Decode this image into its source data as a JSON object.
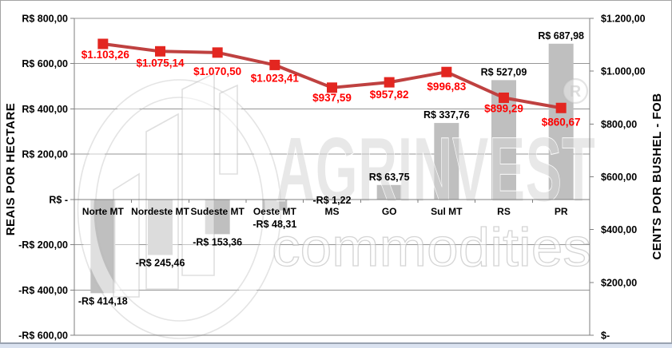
{
  "watermark": {
    "brand": "AGRINVEST",
    "sub": "commodities",
    "registered": "R"
  },
  "chart_data": {
    "type": "bar-line-combo",
    "grid": true,
    "legend": null,
    "categories": [
      "Norte MT",
      "Nordeste MT",
      "Sudeste MT",
      "Oeste MT",
      "MS",
      "GO",
      "Sul MT",
      "RS",
      "PR"
    ],
    "bar_series": {
      "type": "bar",
      "axis": "left",
      "color": "#bfbfbf",
      "values": [
        -414.18,
        -245.46,
        -153.36,
        -48.31,
        -1.22,
        63.75,
        337.76,
        527.09,
        687.98
      ],
      "labels": [
        "-R$ 414,18",
        "-R$ 245,46",
        "-R$ 153,36",
        "-R$ 48,31",
        "-R$ 1,22",
        "R$ 63,75",
        "R$ 337,76",
        "R$ 527,09",
        "R$ 687,98"
      ]
    },
    "line_series": {
      "type": "line",
      "axis": "right",
      "color": "#bf4140",
      "marker_color": "#e32620",
      "label_color": "#ff0000",
      "values": [
        1103.26,
        1075.14,
        1070.5,
        1023.41,
        937.59,
        957.82,
        996.83,
        899.29,
        860.67
      ],
      "labels": [
        "$1.103,26",
        "$1.075,14",
        "$1.070,50",
        "$1.023,41",
        "$937,59",
        "$957,82",
        "$996,83",
        "$899,29",
        "$860,67"
      ]
    },
    "left_axis": {
      "title": "REAIS POR HECTARE",
      "min": -600,
      "max": 800,
      "step": 200,
      "tick_labels": [
        "R$ 800,00",
        "R$ 600,00",
        "R$ 400,00",
        "R$ 200,00",
        "R$ -",
        "-R$ 200,00",
        "-R$ 400,00",
        "-R$ 600,00"
      ]
    },
    "right_axis": {
      "title": "CENTS POR BUSHEL - FOB",
      "min": 0,
      "max": 1200,
      "step": 200,
      "tick_labels": [
        "$1.200,00",
        "$1.000,00",
        "$800,00",
        "$600,00",
        "$400,00",
        "$200,00",
        "$-"
      ]
    }
  }
}
